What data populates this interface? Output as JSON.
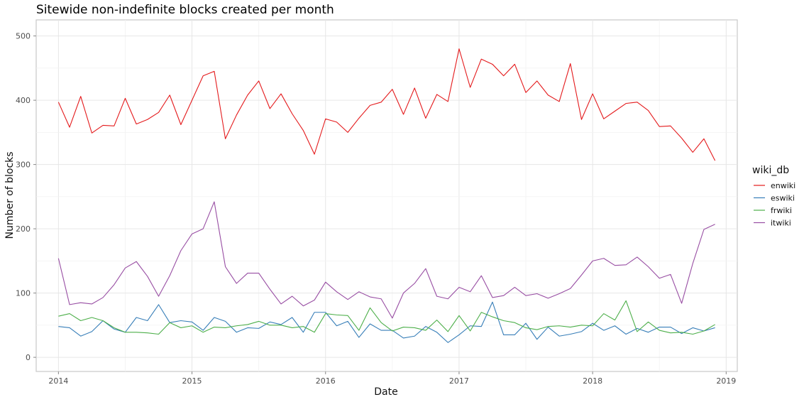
{
  "chart_data": {
    "type": "line",
    "title": "Sitewide non-indefinite blocks created per month",
    "xlabel": "Date",
    "ylabel": "Number of blocks",
    "x_start": "2014-01",
    "x_step": "month",
    "x_ticks": [
      "2014",
      "2015",
      "2016",
      "2017",
      "2018",
      "2019"
    ],
    "xlim": [
      "2013-11",
      "2019-02"
    ],
    "ylim": [
      -22,
      525
    ],
    "y_ticks": [
      0,
      100,
      200,
      300,
      400,
      500
    ],
    "grid": true,
    "legend": {
      "title": "wiki_db",
      "placement": "right"
    },
    "series": [
      {
        "name": "enwiki",
        "color": "#E41A1C",
        "values": [
          397,
          358,
          406,
          349,
          361,
          360,
          403,
          363,
          370,
          381,
          408,
          362,
          400,
          438,
          445,
          340,
          377,
          408,
          430,
          387,
          410,
          379,
          353,
          316,
          371,
          366,
          350,
          372,
          392,
          397,
          417,
          378,
          419,
          372,
          409,
          398,
          480,
          420,
          464,
          456,
          438,
          456,
          412,
          430,
          408,
          398,
          457,
          370,
          410,
          371,
          383,
          395,
          397,
          384,
          359,
          360,
          341,
          319,
          340,
          306
        ]
      },
      {
        "name": "eswiki",
        "color": "#377EB8",
        "values": [
          48,
          46,
          33,
          40,
          57,
          44,
          39,
          62,
          57,
          82,
          54,
          57,
          55,
          42,
          62,
          56,
          39,
          46,
          45,
          55,
          51,
          62,
          39,
          70,
          70,
          49,
          56,
          31,
          52,
          42,
          42,
          30,
          33,
          48,
          39,
          23,
          35,
          49,
          48,
          86,
          35,
          35,
          53,
          28,
          47,
          33,
          36,
          40,
          53,
          42,
          49,
          36,
          45,
          39,
          47,
          47,
          37,
          46,
          41,
          46
        ]
      },
      {
        "name": "frwiki",
        "color": "#4DAF4A",
        "values": [
          64,
          68,
          57,
          62,
          57,
          46,
          39,
          39,
          38,
          36,
          54,
          46,
          49,
          39,
          47,
          46,
          49,
          51,
          56,
          50,
          50,
          46,
          48,
          39,
          68,
          66,
          65,
          42,
          77,
          54,
          41,
          47,
          46,
          42,
          58,
          40,
          65,
          41,
          70,
          63,
          57,
          54,
          46,
          43,
          48,
          49,
          47,
          50,
          49,
          68,
          58,
          88,
          40,
          55,
          42,
          38,
          39,
          36,
          41,
          51
        ]
      },
      {
        "name": "itwiki",
        "color": "#984EA3",
        "values": [
          154,
          82,
          85,
          83,
          93,
          113,
          139,
          149,
          126,
          95,
          127,
          166,
          192,
          200,
          242,
          141,
          115,
          131,
          131,
          106,
          83,
          95,
          80,
          89,
          117,
          102,
          90,
          102,
          94,
          91,
          61,
          100,
          115,
          138,
          95,
          91,
          109,
          102,
          127,
          93,
          96,
          109,
          96,
          99,
          92,
          99,
          107,
          128,
          150,
          154,
          143,
          144,
          156,
          141,
          123,
          129,
          84,
          146,
          199,
          207
        ]
      }
    ]
  }
}
